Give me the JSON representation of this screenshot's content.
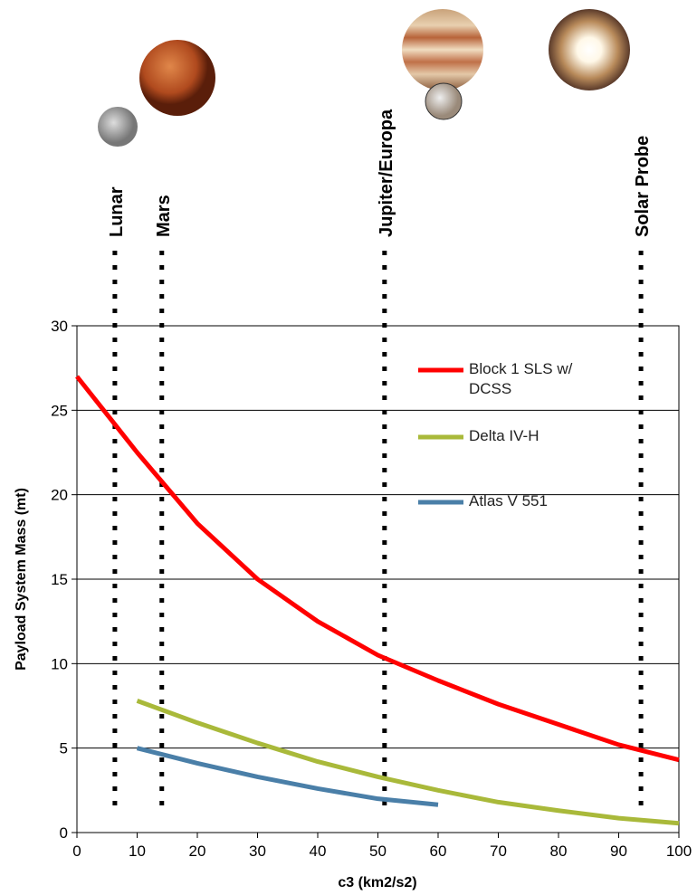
{
  "chart_data": {
    "type": "line",
    "x_label": "c3 (km2/s2)",
    "y_label": "Payload System Mass (mt)",
    "xlim": [
      0,
      100
    ],
    "xticks": [
      0,
      10,
      20,
      30,
      40,
      50,
      60,
      70,
      80,
      90,
      100
    ],
    "ylim": [
      0,
      30
    ],
    "yticks": [
      0,
      5,
      10,
      15,
      20,
      25,
      30
    ],
    "grid": true,
    "series": [
      {
        "name": "Block 1 SLS w/ DCSS",
        "color": "#ff0000",
        "x": [
          0,
          10,
          20,
          30,
          40,
          50,
          60,
          70,
          80,
          90,
          100
        ],
        "values": [
          27,
          22.5,
          18.3,
          15,
          12.5,
          10.5,
          9,
          7.6,
          6.4,
          5.2,
          4.3
        ]
      },
      {
        "name": "Delta IV-H",
        "color": "#a9b93a",
        "x": [
          10,
          20,
          30,
          40,
          50,
          60,
          70,
          80,
          90,
          100
        ],
        "values": [
          7.8,
          6.5,
          5.3,
          4.2,
          3.3,
          2.5,
          1.8,
          1.3,
          0.85,
          0.55
        ]
      },
      {
        "name": "Atlas V 551",
        "color": "#4a7fa8",
        "x": [
          10,
          20,
          30,
          40,
          50,
          60
        ],
        "values": [
          5,
          4.1,
          3.3,
          2.6,
          2.0,
          1.65
        ]
      }
    ],
    "markers": [
      {
        "label": "Lunar",
        "x": 6.3
      },
      {
        "label": "Mars",
        "x": 14.1
      },
      {
        "label": "Jupiter/Europa",
        "x": 51.1
      },
      {
        "label": "Solar Probe",
        "x": 93.7
      }
    ]
  }
}
